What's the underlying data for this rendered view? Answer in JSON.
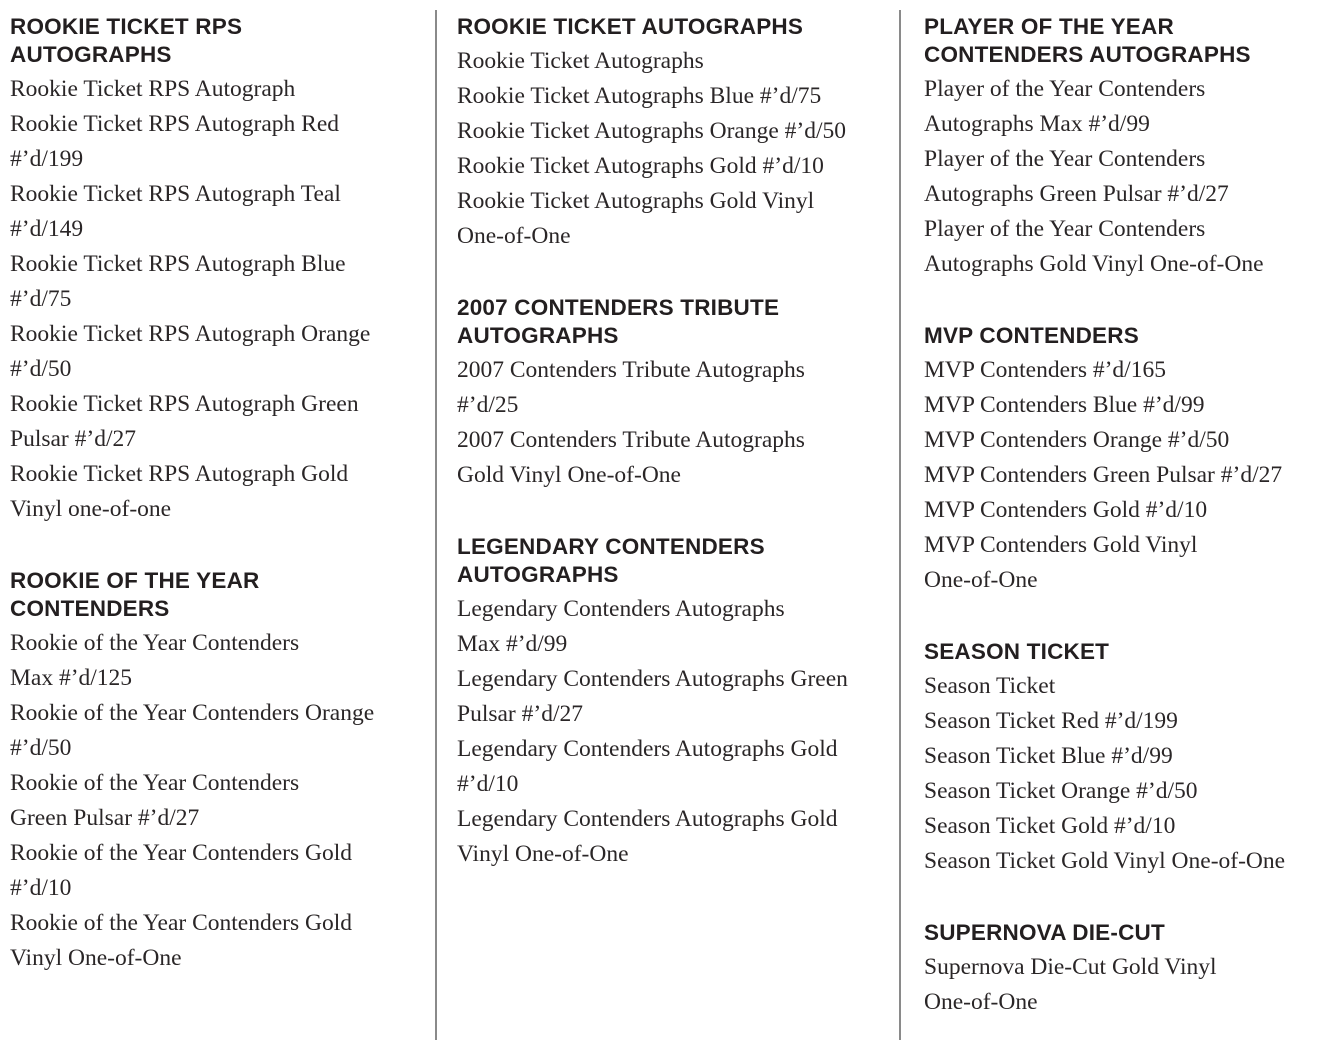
{
  "columns": [
    {
      "sections": [
        {
          "heading": "ROOKIE TICKET RPS\nAUTOGRAPHS",
          "items": [
            "Rookie Ticket RPS Autograph",
            "Rookie Ticket RPS Autograph Red\n#’d/199",
            "Rookie Ticket RPS Autograph Teal\n#’d/149",
            "Rookie Ticket RPS Autograph Blue\n#’d/75",
            "Rookie Ticket RPS Autograph Orange\n#’d/50",
            "Rookie Ticket RPS Autograph Green\nPulsar #’d/27",
            "Rookie Ticket RPS Autograph Gold\nVinyl  one-of-one"
          ]
        },
        {
          "heading": "ROOKIE OF THE YEAR\nCONTENDERS",
          "items": [
            "Rookie of the Year Contenders\nMax #’d/125",
            "Rookie of the Year Contenders Orange\n#’d/50",
            "Rookie of the Year Contenders\nGreen Pulsar #’d/27",
            "Rookie of the Year Contenders Gold\n#’d/10",
            "Rookie of the Year Contenders Gold\nVinyl One-of-One"
          ]
        }
      ]
    },
    {
      "sections": [
        {
          "heading": "ROOKIE TICKET AUTOGRAPHS",
          "items": [
            "Rookie Ticket Autographs",
            "Rookie Ticket Autographs Blue #’d/75",
            "Rookie Ticket Autographs Orange #’d/50",
            "Rookie Ticket Autographs Gold #’d/10",
            "Rookie Ticket Autographs Gold Vinyl\nOne-of-One"
          ]
        },
        {
          "heading": "2007 CONTENDERS TRIBUTE\nAUTOGRAPHS",
          "items": [
            "2007 Contenders Tribute Autographs\n#’d/25",
            "2007 Contenders Tribute Autographs\nGold Vinyl One-of-One"
          ]
        },
        {
          "heading": "LEGENDARY CONTENDERS\nAUTOGRAPHS",
          "items": [
            "Legendary Contenders Autographs\nMax #’d/99",
            "Legendary Contenders Autographs Green\nPulsar #’d/27",
            "Legendary Contenders Autographs Gold\n#’d/10",
            "Legendary Contenders Autographs Gold\nVinyl One-of-One"
          ]
        }
      ]
    },
    {
      "sections": [
        {
          "heading": "PLAYER OF THE YEAR\nCONTENDERS AUTOGRAPHS",
          "items": [
            "Player of the Year Contenders\nAutographs Max #’d/99",
            "Player of the Year Contenders\nAutographs Green Pulsar #’d/27",
            "Player of the Year Contenders\nAutographs Gold Vinyl One-of-One"
          ]
        },
        {
          "heading": "MVP CONTENDERS",
          "items": [
            "MVP Contenders #’d/165",
            "MVP Contenders Blue #’d/99",
            "MVP Contenders Orange #’d/50",
            "MVP Contenders Green Pulsar #’d/27",
            "MVP Contenders Gold #’d/10",
            "MVP Contenders Gold Vinyl\nOne-of-One"
          ]
        },
        {
          "heading": "SEASON TICKET",
          "items": [
            "Season Ticket",
            "Season Ticket Red #’d/199",
            "Season Ticket Blue #’d/99",
            "Season Ticket Orange #’d/50",
            "Season Ticket Gold #’d/10",
            "Season Ticket Gold Vinyl One-of-One"
          ]
        },
        {
          "heading": "SUPERNOVA DIE-CUT",
          "items": [
            "Supernova Die-Cut Gold Vinyl\nOne-of-One"
          ]
        }
      ]
    }
  ]
}
